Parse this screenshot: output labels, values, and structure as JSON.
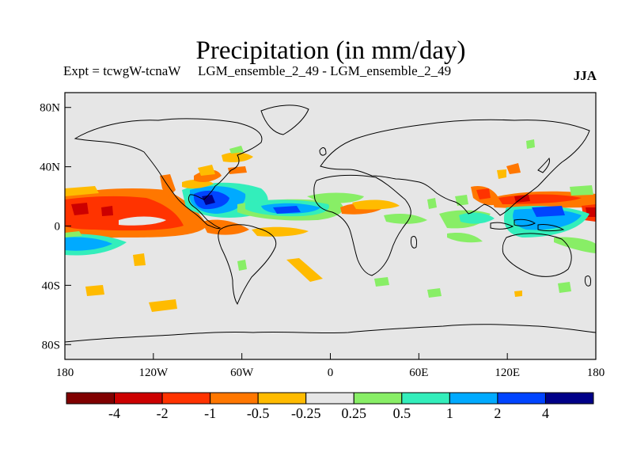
{
  "header": {
    "title": "Precipitation (in mm/day)",
    "experiment": "Expt = tcwgW-tcnaW",
    "run": "LGM_ensemble_2_49 - LGM_ensemble_2_49",
    "season": "JJA"
  },
  "map": {
    "projection": "cylindrical equidistant",
    "lon_range": [
      -180,
      180
    ],
    "lat_range": [
      -90,
      90
    ],
    "background_color": "#e6e6e6",
    "lat_ticks": [
      {
        "value": 80,
        "label": "80N"
      },
      {
        "value": 40,
        "label": "40N"
      },
      {
        "value": 0,
        "label": "0"
      },
      {
        "value": -40,
        "label": "40S"
      },
      {
        "value": -80,
        "label": "80S"
      }
    ],
    "lon_ticks": [
      {
        "value": -180,
        "label": "180"
      },
      {
        "value": -120,
        "label": "120W"
      },
      {
        "value": -60,
        "label": "60W"
      },
      {
        "value": 0,
        "label": "0"
      },
      {
        "value": 60,
        "label": "60E"
      },
      {
        "value": 120,
        "label": "120E"
      },
      {
        "value": 180,
        "label": "180"
      }
    ]
  },
  "colorbar": {
    "colors": [
      "#800000",
      "#cc0000",
      "#ff3300",
      "#ff7700",
      "#ffbb00",
      "#e6e6e6",
      "#88ee66",
      "#33eebb",
      "#00aaff",
      "#0044ff",
      "#000088"
    ],
    "labels": [
      "-4",
      "-2",
      "-1",
      "-0.5",
      "-0.25",
      "0.25",
      "0.5",
      "1",
      "2",
      "4"
    ]
  }
}
